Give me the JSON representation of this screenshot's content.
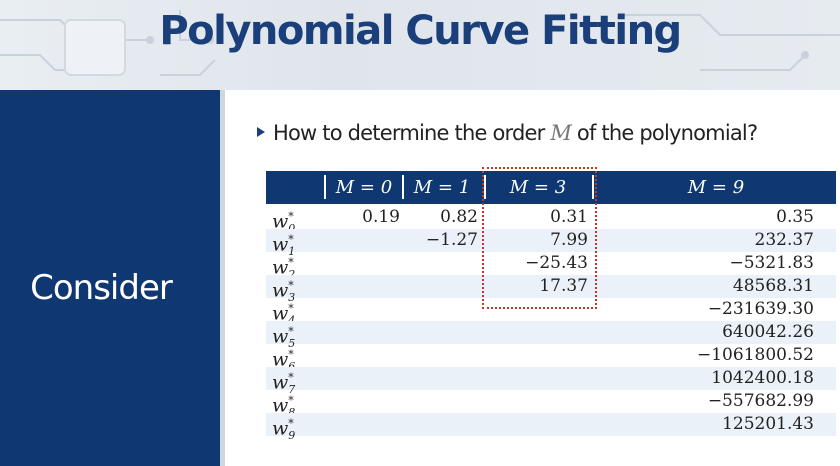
{
  "slide": {
    "title": "Polynomial Curve Fitting",
    "sidebar_label": "Consider",
    "bullet_pre": "How to determine the order ",
    "bullet_var": "M",
    "bullet_post": " of the polynomial?"
  },
  "table": {
    "headers": [
      "M = 0",
      "M = 1",
      "M = 3",
      "M = 9"
    ],
    "rows": [
      {
        "label": "w",
        "sub": "0",
        "sup": "*",
        "m0": "0.19",
        "m1": "0.82",
        "m3": "0.31",
        "m9": "0.35"
      },
      {
        "label": "w",
        "sub": "1",
        "sup": "*",
        "m0": "",
        "m1": "−1.27",
        "m3": "7.99",
        "m9": "232.37"
      },
      {
        "label": "w",
        "sub": "2",
        "sup": "*",
        "m0": "",
        "m1": "",
        "m3": "−25.43",
        "m9": "−5321.83"
      },
      {
        "label": "w",
        "sub": "3",
        "sup": "*",
        "m0": "",
        "m1": "",
        "m3": "17.37",
        "m9": "48568.31"
      },
      {
        "label": "w",
        "sub": "4",
        "sup": "*",
        "m0": "",
        "m1": "",
        "m3": "",
        "m9": "−231639.30"
      },
      {
        "label": "w",
        "sub": "5",
        "sup": "*",
        "m0": "",
        "m1": "",
        "m3": "",
        "m9": "640042.26"
      },
      {
        "label": "w",
        "sub": "6",
        "sup": "*",
        "m0": "",
        "m1": "",
        "m3": "",
        "m9": "−1061800.52"
      },
      {
        "label": "w",
        "sub": "7",
        "sup": "*",
        "m0": "",
        "m1": "",
        "m3": "",
        "m9": "1042400.18"
      },
      {
        "label": "w",
        "sub": "8",
        "sup": "*",
        "m0": "",
        "m1": "",
        "m3": "",
        "m9": "−557682.99"
      },
      {
        "label": "w",
        "sub": "9",
        "sup": "*",
        "m0": "",
        "m1": "",
        "m3": "",
        "m9": "125201.43"
      }
    ]
  },
  "colors": {
    "navy": "#0f3872",
    "title": "#1a3f7a",
    "highlight": "#c0392b",
    "row_alt": "#eaf1f8"
  }
}
